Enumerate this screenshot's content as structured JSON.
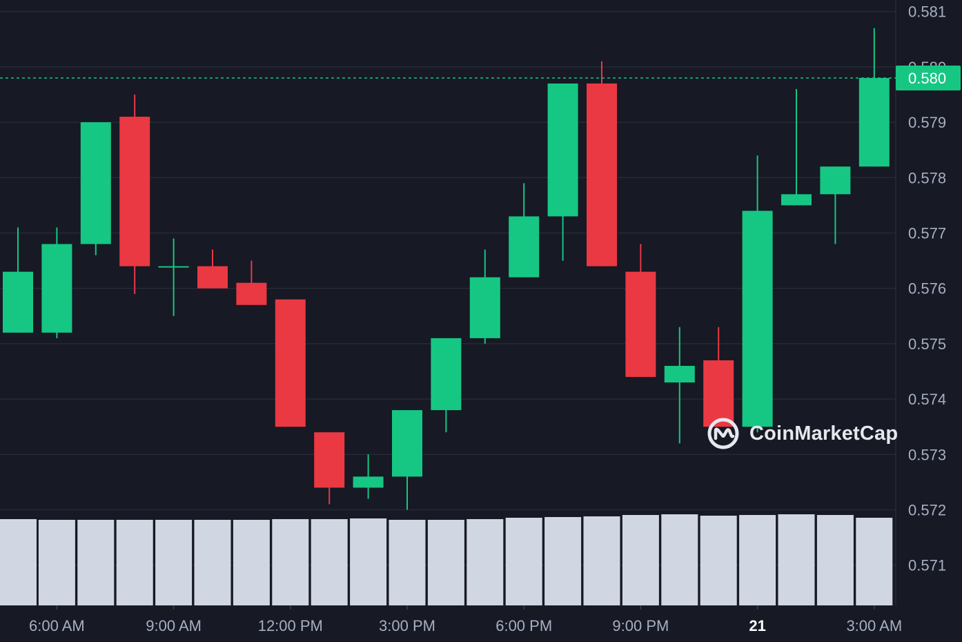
{
  "chart_data": {
    "type": "candlestick",
    "title": "",
    "xlabel": "",
    "ylabel": "",
    "ylim": [
      0.5702,
      0.5813
    ],
    "y_ticks": [
      0.571,
      0.572,
      0.573,
      0.574,
      0.575,
      0.576,
      0.577,
      0.578,
      0.579,
      0.58,
      0.581
    ],
    "y_tick_labels": [
      "0.571",
      "0.572",
      "0.573",
      "0.574",
      "0.575",
      "0.576",
      "0.577",
      "0.578",
      "0.579",
      "0.580",
      "0.581"
    ],
    "x_ticks": [
      {
        "label": "6:00 AM",
        "index": 1,
        "bold": false
      },
      {
        "label": "9:00 AM",
        "index": 4,
        "bold": false
      },
      {
        "label": "12:00 PM",
        "index": 7,
        "bold": false
      },
      {
        "label": "3:00 PM",
        "index": 10,
        "bold": false
      },
      {
        "label": "6:00 PM",
        "index": 13,
        "bold": false
      },
      {
        "label": "9:00 PM",
        "index": 16,
        "bold": false
      },
      {
        "label": "21",
        "index": 19,
        "bold": true
      },
      {
        "label": "3:00 AM",
        "index": 22,
        "bold": false
      }
    ],
    "candles": [
      {
        "open": 0.5752,
        "high": 0.5771,
        "low": 0.5752,
        "close": 0.5763
      },
      {
        "open": 0.5752,
        "high": 0.5771,
        "low": 0.5751,
        "close": 0.5768
      },
      {
        "open": 0.5768,
        "high": 0.579,
        "low": 0.5766,
        "close": 0.579
      },
      {
        "open": 0.5791,
        "high": 0.5795,
        "low": 0.5759,
        "close": 0.5764
      },
      {
        "open": 0.5764,
        "high": 0.5769,
        "low": 0.5755,
        "close": 0.5764
      },
      {
        "open": 0.5764,
        "high": 0.5767,
        "low": 0.576,
        "close": 0.576
      },
      {
        "open": 0.5761,
        "high": 0.5765,
        "low": 0.5757,
        "close": 0.5757
      },
      {
        "open": 0.5758,
        "high": 0.5758,
        "low": 0.5735,
        "close": 0.5735
      },
      {
        "open": 0.5734,
        "high": 0.5734,
        "low": 0.5721,
        "close": 0.5724
      },
      {
        "open": 0.5724,
        "high": 0.573,
        "low": 0.5722,
        "close": 0.5726
      },
      {
        "open": 0.5726,
        "high": 0.5738,
        "low": 0.572,
        "close": 0.5738
      },
      {
        "open": 0.5738,
        "high": 0.5751,
        "low": 0.5734,
        "close": 0.5751
      },
      {
        "open": 0.5751,
        "high": 0.5767,
        "low": 0.575,
        "close": 0.5762
      },
      {
        "open": 0.5762,
        "high": 0.5779,
        "low": 0.5762,
        "close": 0.5773
      },
      {
        "open": 0.5773,
        "high": 0.5797,
        "low": 0.5765,
        "close": 0.5797
      },
      {
        "open": 0.5797,
        "high": 0.5801,
        "low": 0.5764,
        "close": 0.5764
      },
      {
        "open": 0.5763,
        "high": 0.5768,
        "low": 0.5744,
        "close": 0.5744
      },
      {
        "open": 0.5743,
        "high": 0.5753,
        "low": 0.5732,
        "close": 0.5746
      },
      {
        "open": 0.5747,
        "high": 0.5753,
        "low": 0.5735,
        "close": 0.5735
      },
      {
        "open": 0.5735,
        "high": 0.5784,
        "low": 0.5734,
        "close": 0.5774
      },
      {
        "open": 0.5775,
        "high": 0.5796,
        "low": 0.5775,
        "close": 0.5777
      },
      {
        "open": 0.5777,
        "high": 0.5782,
        "low": 0.5768,
        "close": 0.5782
      },
      {
        "open": 0.5782,
        "high": 0.5807,
        "low": 0.5782,
        "close": 0.5798
      }
    ],
    "volume_visible": true,
    "current_price": 0.5798,
    "current_price_label": "0.580",
    "grid": true,
    "colors": {
      "up": "#16c784",
      "down": "#ea3943",
      "background": "#171924",
      "grid": "#262a38",
      "volume": "#d1d6e3",
      "axis_text": "#a6b0c3"
    }
  },
  "watermark": {
    "text": "CoinMarketCap",
    "icon": "coinmarketcap-logo-icon"
  }
}
